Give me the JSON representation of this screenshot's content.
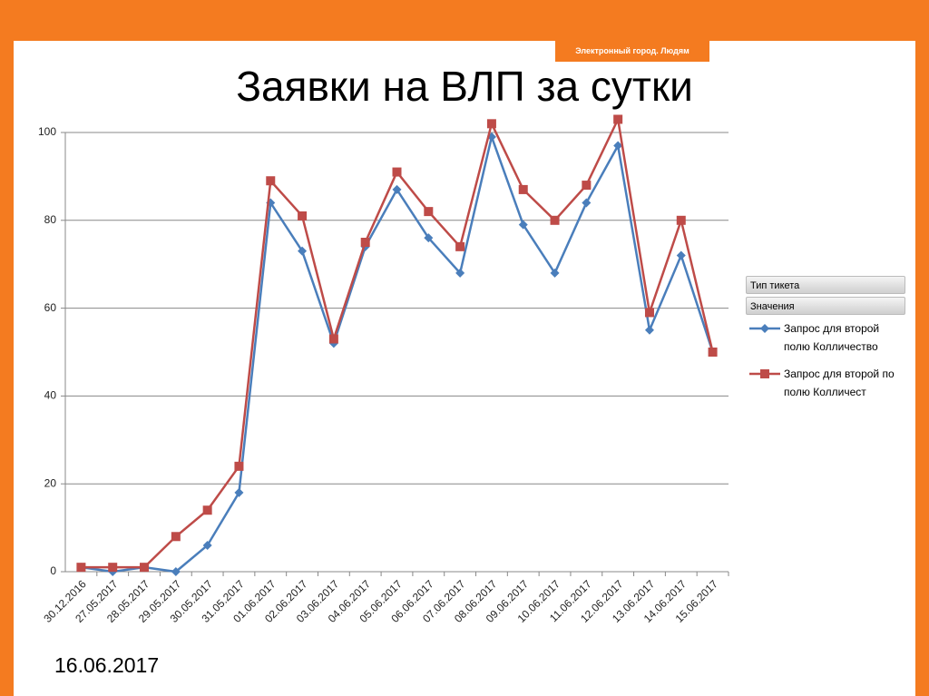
{
  "slide": {
    "badge": "Электронный город. Людям",
    "date": "16.06.2017"
  },
  "chart_data": {
    "type": "line",
    "title": "Заявки на ВЛП за сутки",
    "categories": [
      "30.12.2016",
      "27.05.2017",
      "28.05.2017",
      "29.05.2017",
      "30.05.2017",
      "31.05.2017",
      "01.06.2017",
      "02.06.2017",
      "03.06.2017",
      "04.06.2017",
      "05.06.2017",
      "06.06.2017",
      "07.06.2017",
      "08.06.2017",
      "09.06.2017",
      "10.06.2017",
      "11.06.2017",
      "12.06.2017",
      "13.06.2017",
      "14.06.2017",
      "15.06.2017"
    ],
    "series": [
      {
        "name": "Запрос для второй полю Колличество",
        "color": "#4a7ebb",
        "marker": "diamond",
        "values": [
          1,
          0,
          1,
          0,
          6,
          18,
          84,
          73,
          52,
          74,
          87,
          76,
          68,
          99,
          79,
          68,
          84,
          97,
          55,
          72,
          50
        ]
      },
      {
        "name": "Запрос для второй по полю Колличест",
        "color": "#be4b48",
        "marker": "square",
        "values": [
          1,
          1,
          1,
          8,
          14,
          24,
          89,
          81,
          53,
          75,
          91,
          82,
          74,
          102,
          87,
          80,
          88,
          103,
          59,
          80,
          50
        ]
      }
    ],
    "legend_fields": [
      "Тип тикета",
      "Значения"
    ],
    "ylim": [
      0,
      100
    ],
    "yticks": [
      0,
      20,
      40,
      60,
      80,
      100
    ],
    "grid": true
  }
}
